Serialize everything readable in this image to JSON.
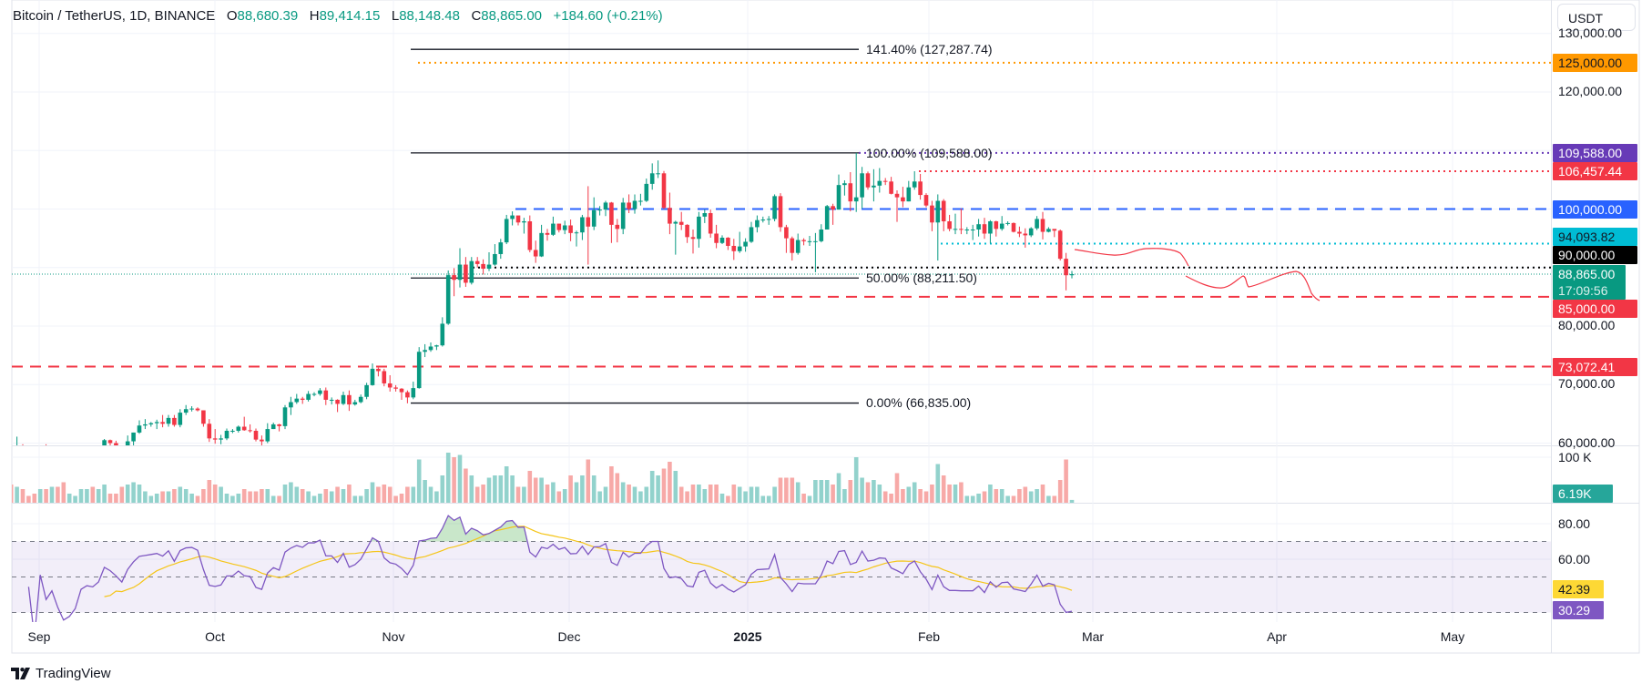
{
  "header": {
    "symbol": "Bitcoin / TetherUS, 1D, BINANCE",
    "open_label": "O",
    "open": "88,680.39",
    "high_label": "H",
    "high": "89,414.15",
    "low_label": "L",
    "low": "88,148.48",
    "close_label": "C",
    "close": "88,865.00",
    "change": "+184.60 (+0.21%)"
  },
  "currency_button": "USDT",
  "price_axis": [
    "130,000.00",
    "120,000.00",
    "80,000.00",
    "70,000.00",
    "60,000.00"
  ],
  "price_axis_values": [
    130000,
    120000,
    80000,
    70000,
    60000
  ],
  "volume_axis": "100 K",
  "rsi_axis": [
    "80.00",
    "60.00"
  ],
  "time_axis": [
    "Sep",
    "Oct",
    "Nov",
    "Dec",
    "2025",
    "Feb",
    "Mar",
    "Apr",
    "May"
  ],
  "fib_labels": {
    "l1414": "141.40% (127,287.74)",
    "l100": "100.00% (109,588.00)",
    "l50": "50.00% (88,211.50)",
    "l0": "0.00% (66,835.00)"
  },
  "price_tags": {
    "p125000": {
      "text": "125,000.00",
      "value": 125000,
      "bg": "#ff9800",
      "fg": "#131722"
    },
    "p109588": {
      "text": "109,588.00",
      "value": 109588,
      "bg": "#673ab7",
      "fg": "#ffffff"
    },
    "p106457": {
      "text": "106,457.44",
      "value": 106457.44,
      "bg": "#f23645",
      "fg": "#ffffff"
    },
    "p100000": {
      "text": "100,000.00",
      "value": 100000,
      "bg": "#2962ff",
      "fg": "#ffffff"
    },
    "p94093": {
      "text": "94,093.82",
      "value": 94093.82,
      "bg": "#00bcd4",
      "fg": "#131722"
    },
    "p90000": {
      "text": "90,000.00",
      "value": 90000,
      "bg": "#000000",
      "fg": "#ffffff"
    },
    "current": {
      "text": "88,865.00",
      "countdown": "17:09:56",
      "value": 88865,
      "bg": "#089981",
      "fg": "#ffffff"
    },
    "p85000": {
      "text": "85,000.00",
      "value": 85000,
      "bg": "#f23645",
      "fg": "#ffffff"
    },
    "p73072": {
      "text": "73,072.41",
      "value": 73072.41,
      "bg": "#f23645",
      "fg": "#ffffff"
    }
  },
  "volume_tag": {
    "text": "6.19K",
    "bg": "#26a69a"
  },
  "rsi_tags": {
    "ma": {
      "text": "42.39",
      "bg": "#fdd835"
    },
    "rsi": {
      "text": "30.29",
      "bg": "#7e57c2"
    }
  },
  "colors": {
    "up": "#089981",
    "down": "#f23645",
    "rsi": "#7e57c2",
    "rsi_ma": "#f5c518"
  },
  "brand": "TradingView",
  "chart_data": {
    "type": "candlestick",
    "interval": "1D",
    "first_date": "2024-08-28",
    "last_date": "2025-02-26",
    "open": [
      59400,
      59000,
      59400,
      59100,
      58900,
      57300,
      59100,
      57500,
      58000,
      56200,
      53900,
      54200,
      54900,
      57100,
      57600,
      57400,
      58100,
      60500,
      60000,
      59200,
      58200,
      60300,
      61800,
      63000,
      63200,
      63400,
      63600,
      63300,
      64300,
      63100,
      65200,
      65800,
      65900,
      65600,
      63300,
      60800,
      60600,
      60800,
      62100,
      62100,
      62800,
      62200,
      62100,
      60600,
      60300,
      62400,
      63200,
      62900,
      66100,
      67000,
      67600,
      67400,
      68400,
      68400,
      69000,
      67400,
      67400,
      66700,
      68200,
      66600,
      67000,
      67900,
      69900,
      72700,
      72300,
      70200,
      69500,
      69300,
      68700,
      67800,
      69400,
      75600,
      75900,
      76500,
      76700,
      80400,
      88700,
      87900,
      90500,
      87400,
      91100,
      90600,
      89800,
      90500,
      92300,
      94300,
      98300,
      98900,
      97700,
      97900,
      93000,
      91900,
      95900,
      95600,
      97500,
      96400,
      97200,
      95900,
      96000,
      98600,
      97000,
      99800,
      99900,
      101100,
      97300,
      96600,
      101100,
      100000,
      101400,
      101400,
      104300,
      106100,
      106100,
      100200,
      97500,
      97800,
      97300,
      95200,
      94900,
      98700,
      99300,
      95800,
      94200,
      95100,
      93700,
      92800,
      93600,
      94400,
      96900,
      98100,
      98200,
      98300,
      102200,
      96900,
      95000,
      92500,
      94700,
      94500,
      94500,
      94500,
      96500,
      100500,
      99900,
      104100,
      104400,
      101300,
      102000,
      106100,
      103700,
      104000,
      104800,
      104700,
      102600,
      102000,
      101300,
      103700,
      104700,
      102400,
      100600,
      97700,
      101400,
      97900,
      96600,
      96600,
      96500,
      96500,
      96500,
      97400,
      95800,
      97900,
      96600,
      97500,
      97600,
      96100,
      95800,
      95500,
      96700,
      98300,
      96100,
      96600,
      96300,
      91500,
      88680.39
    ],
    "high": [
      60200,
      61100,
      59800,
      59400,
      59000,
      59400,
      59800,
      58500,
      58300,
      56900,
      54800,
      55300,
      58100,
      58000,
      57900,
      58600,
      60700,
      60600,
      60400,
      59200,
      61300,
      61800,
      63900,
      64100,
      63600,
      64000,
      64800,
      64800,
      64800,
      65800,
      66500,
      66300,
      66100,
      65600,
      64100,
      62400,
      61400,
      62500,
      62400,
      63000,
      64500,
      63200,
      62500,
      61300,
      63400,
      63500,
      63300,
      66500,
      67900,
      68400,
      67900,
      68900,
      68700,
      69400,
      69500,
      67800,
      67500,
      68800,
      69000,
      67400,
      68300,
      70300,
      73600,
      72900,
      72700,
      71600,
      69900,
      69400,
      69000,
      70500,
      76400,
      76900,
      77200,
      76800,
      81500,
      89500,
      89900,
      93300,
      91800,
      91800,
      91800,
      91400,
      92600,
      94000,
      94900,
      99000,
      99600,
      98800,
      98500,
      98900,
      94600,
      97300,
      96600,
      98700,
      97500,
      98000,
      98200,
      96300,
      99000,
      103900,
      102000,
      100500,
      101400,
      101200,
      98300,
      101900,
      102500,
      102500,
      102600,
      105200,
      107800,
      108300,
      106500,
      102800,
      98000,
      99500,
      97400,
      96500,
      99500,
      99900,
      99900,
      97300,
      95500,
      95200,
      94900,
      96100,
      95000,
      97800,
      98900,
      98700,
      98800,
      102500,
      102700,
      97300,
      95300,
      95800,
      95000,
      95400,
      95900,
      97400,
      100700,
      100900,
      105900,
      104900,
      106300,
      109588,
      107200,
      106400,
      106800,
      107000,
      105300,
      105500,
      103200,
      103800,
      104800,
      106457,
      106000,
      102700,
      101400,
      102500,
      101700,
      99000,
      99200,
      100100,
      96900,
      97300,
      98300,
      98500,
      98100,
      98000,
      98800,
      97900,
      97700,
      97000,
      96700,
      96900,
      98800,
      99500,
      96900,
      96500,
      96500,
      92500,
      89414.15
    ],
    "low": [
      57900,
      58800,
      57800,
      58700,
      57200,
      57100,
      57400,
      55600,
      55600,
      52600,
      53800,
      53600,
      54600,
      56400,
      55500,
      57300,
      57600,
      59500,
      58700,
      57500,
      57600,
      59200,
      61600,
      62400,
      62800,
      62400,
      62700,
      62800,
      62800,
      62700,
      64800,
      65400,
      65400,
      62800,
      60200,
      59900,
      59800,
      60500,
      61700,
      61800,
      62100,
      61800,
      60300,
      58900,
      60000,
      62400,
      62000,
      62400,
      64800,
      66700,
      66700,
      67100,
      68000,
      68100,
      66500,
      66600,
      65300,
      66500,
      65500,
      66400,
      66800,
      67500,
      69800,
      71400,
      69700,
      68800,
      68800,
      67400,
      66800,
      67500,
      69300,
      74700,
      75600,
      75900,
      76500,
      80200,
      85100,
      86600,
      86700,
      87100,
      90000,
      88800,
      89400,
      90300,
      91500,
      94000,
      97200,
      97200,
      95800,
      92600,
      90800,
      91800,
      94600,
      95400,
      96000,
      95700,
      94500,
      93600,
      94700,
      90500,
      96400,
      98900,
      98800,
      94200,
      94300,
      95700,
      99300,
      99200,
      100600,
      101200,
      103300,
      105300,
      100000,
      95700,
      92200,
      96400,
      94200,
      92400,
      93400,
      97600,
      95100,
      93300,
      94000,
      93000,
      91300,
      92500,
      92700,
      94200,
      96000,
      97700,
      97300,
      97900,
      96100,
      92500,
      91200,
      92200,
      93800,
      93700,
      89200,
      94300,
      96500,
      97300,
      99900,
      102300,
      99600,
      99500,
      100100,
      103300,
      101300,
      102800,
      104100,
      102500,
      97800,
      100300,
      101300,
      103300,
      101600,
      100300,
      96200,
      91200,
      96200,
      96200,
      95700,
      95700,
      95700,
      94700,
      95300,
      94900,
      94100,
      95300,
      96300,
      97200,
      96000,
      95200,
      93400,
      95200,
      96400,
      94800,
      96000,
      95200,
      91200,
      86100,
      88148.48
    ],
    "close": [
      59000,
      59400,
      59100,
      58900,
      57300,
      59100,
      57500,
      58000,
      56200,
      53900,
      54200,
      54900,
      57100,
      57600,
      57400,
      58100,
      60500,
      60000,
      59200,
      58200,
      60300,
      61800,
      63000,
      63200,
      63400,
      63600,
      63300,
      64300,
      63100,
      65200,
      65800,
      65900,
      65600,
      63300,
      60800,
      60600,
      60800,
      62100,
      62100,
      62800,
      62200,
      62100,
      60600,
      60300,
      62400,
      63200,
      62900,
      66100,
      67000,
      67600,
      67400,
      68400,
      68400,
      69000,
      67400,
      67400,
      66700,
      68200,
      66600,
      67000,
      67900,
      69900,
      72700,
      72300,
      70200,
      69500,
      69300,
      68700,
      67800,
      69400,
      75600,
      75900,
      76500,
      76700,
      80400,
      88700,
      87900,
      90500,
      87400,
      91100,
      90600,
      89800,
      90500,
      92300,
      94300,
      98300,
      98900,
      97700,
      97900,
      93000,
      91900,
      95900,
      95600,
      97500,
      96400,
      97200,
      95900,
      96000,
      98600,
      97000,
      99800,
      99900,
      101100,
      97300,
      96600,
      101100,
      100000,
      101400,
      101400,
      104300,
      106100,
      106100,
      100200,
      97500,
      97800,
      97300,
      95200,
      94900,
      98700,
      99300,
      95800,
      94200,
      95100,
      93700,
      92800,
      93600,
      94400,
      96900,
      98100,
      98200,
      98300,
      102200,
      96900,
      95000,
      92500,
      94700,
      94500,
      94500,
      94500,
      96500,
      100500,
      99900,
      104100,
      104400,
      101300,
      102000,
      106100,
      103700,
      104000,
      104800,
      104700,
      102600,
      102000,
      101300,
      103700,
      104700,
      102400,
      100600,
      97700,
      101400,
      97900,
      96600,
      96600,
      96500,
      96500,
      96500,
      97400,
      95800,
      97900,
      96600,
      97500,
      97600,
      96100,
      95800,
      95500,
      96700,
      98300,
      96100,
      96600,
      96300,
      91500,
      88680.39,
      88865
    ],
    "volume_k": [
      40,
      35,
      30,
      15,
      20,
      30,
      30,
      35,
      35,
      45,
      20,
      15,
      30,
      30,
      35,
      30,
      40,
      20,
      20,
      35,
      40,
      45,
      40,
      25,
      15,
      20,
      25,
      25,
      30,
      35,
      30,
      20,
      15,
      30,
      50,
      40,
      35,
      20,
      15,
      20,
      30,
      25,
      25,
      30,
      30,
      15,
      15,
      40,
      45,
      35,
      30,
      25,
      15,
      20,
      30,
      25,
      35,
      30,
      40,
      15,
      15,
      30,
      45,
      35,
      40,
      35,
      15,
      20,
      35,
      35,
      95,
      50,
      35,
      25,
      60,
      110,
      100,
      105,
      75,
      60,
      35,
      40,
      55,
      60,
      60,
      80,
      60,
      35,
      35,
      70,
      55,
      55,
      40,
      45,
      25,
      30,
      60,
      45,
      60,
      95,
      60,
      25,
      35,
      80,
      65,
      45,
      40,
      35,
      25,
      35,
      70,
      60,
      75,
      90,
      70,
      35,
      25,
      40,
      40,
      30,
      40,
      40,
      20,
      15,
      40,
      35,
      25,
      35,
      35,
      15,
      15,
      35,
      55,
      55,
      55,
      45,
      20,
      15,
      50,
      50,
      50,
      40,
      65,
      30,
      50,
      100,
      55,
      45,
      50,
      40,
      25,
      20,
      65,
      30,
      35,
      45,
      30,
      25,
      40,
      85,
      60,
      40,
      40,
      45,
      15,
      15,
      20,
      25,
      40,
      30,
      30,
      15,
      15,
      30,
      35,
      25,
      30,
      40,
      15,
      15,
      50,
      95,
      6.19
    ],
    "price_range": [
      59400,
      134600
    ],
    "rsi_levels": [
      70,
      50,
      30
    ],
    "rsi_range": [
      20,
      90
    ],
    "volume_range_k": [
      0,
      100
    ]
  }
}
